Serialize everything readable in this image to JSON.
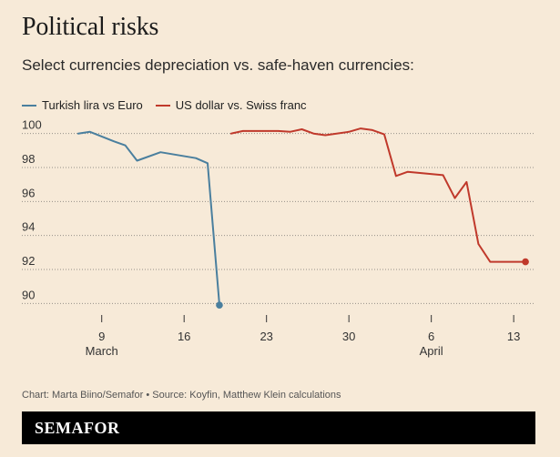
{
  "title": "Political risks",
  "subtitle": "Select currencies depreciation vs. safe-haven currencies:",
  "footer": "Chart: Marta Biino/Semafor • Source: Koyfin, Matthew Klein calculations",
  "brand": "SEMAFOR",
  "colors": {
    "background": "#f7ead8",
    "lira": "#4a7f9e",
    "usd": "#c0392b",
    "grid": "#555555"
  },
  "chart_data": {
    "type": "line",
    "title": "Political risks",
    "subtitle": "Select currencies depreciation vs. safe-haven currencies:",
    "x_type": "date",
    "xlim": [
      "2023-03-05",
      "2023-04-15"
    ],
    "ylim": [
      89,
      101
    ],
    "yticks": [
      90,
      92,
      94,
      96,
      98,
      100
    ],
    "xticks": [
      {
        "date": "2023-03-09",
        "label": "9",
        "sublabel": "March"
      },
      {
        "date": "2023-03-16",
        "label": "16",
        "sublabel": ""
      },
      {
        "date": "2023-03-23",
        "label": "23",
        "sublabel": ""
      },
      {
        "date": "2023-03-30",
        "label": "30",
        "sublabel": ""
      },
      {
        "date": "2023-04-06",
        "label": "6",
        "sublabel": "April"
      },
      {
        "date": "2023-04-13",
        "label": "13",
        "sublabel": ""
      }
    ],
    "grid": "horizontal dotted",
    "legend_position": "top-left",
    "series": [
      {
        "name": "Turkish lira vs Euro",
        "color": "#4a7f9e",
        "end_marker": true,
        "points": [
          [
            "2023-03-07",
            100.0
          ],
          [
            "2023-03-08",
            100.1
          ],
          [
            "2023-03-10",
            99.55
          ],
          [
            "2023-03-11",
            99.3
          ],
          [
            "2023-03-12",
            98.4
          ],
          [
            "2023-03-14",
            98.9
          ],
          [
            "2023-03-17",
            98.55
          ],
          [
            "2023-03-18",
            98.25
          ],
          [
            "2023-03-19",
            89.9
          ]
        ]
      },
      {
        "name": "US dollar vs. Swiss franc",
        "color": "#c0392b",
        "end_marker": true,
        "points": [
          [
            "2023-03-20",
            100.0
          ],
          [
            "2023-03-21",
            100.15
          ],
          [
            "2023-03-24",
            100.15
          ],
          [
            "2023-03-25",
            100.1
          ],
          [
            "2023-03-26",
            100.25
          ],
          [
            "2023-03-27",
            100.0
          ],
          [
            "2023-03-28",
            99.9
          ],
          [
            "2023-03-30",
            100.1
          ],
          [
            "2023-03-31",
            100.3
          ],
          [
            "2023-04-01",
            100.2
          ],
          [
            "2023-04-02",
            99.95
          ],
          [
            "2023-04-03",
            97.5
          ],
          [
            "2023-04-04",
            97.75
          ],
          [
            "2023-04-07",
            97.55
          ],
          [
            "2023-04-08",
            96.2
          ],
          [
            "2023-04-09",
            97.15
          ],
          [
            "2023-04-10",
            93.5
          ],
          [
            "2023-04-11",
            92.45
          ],
          [
            "2023-04-14",
            92.45
          ]
        ]
      }
    ]
  }
}
